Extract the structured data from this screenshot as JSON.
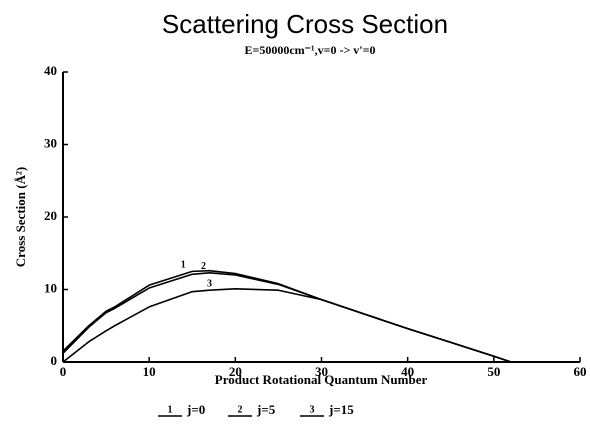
{
  "chart_data": {
    "type": "line",
    "title": "Scattering Cross Section",
    "subtitle": "E=50000cm⁻¹,v=0 -> v'=0",
    "x_label": "Product Rotational Quantum Number",
    "y_label": "Cross Section (Å²)",
    "x": [
      0,
      3,
      5,
      6,
      10,
      15,
      17,
      20,
      25,
      30,
      35,
      40,
      45,
      50,
      52
    ],
    "series": [
      {
        "name": "j=0",
        "label": "1",
        "color": "#000000",
        "values": [
          1.5,
          5,
          7,
          7.6,
          10.6,
          12.5,
          12.6,
          12.2,
          10.8,
          8.6,
          6.6,
          4.6,
          2.7,
          0.8,
          0
        ]
      },
      {
        "name": "j=5",
        "label": "2",
        "color": "#000000",
        "values": [
          1.2,
          4.8,
          6.8,
          7.4,
          10.2,
          12.1,
          12.3,
          12.0,
          10.7,
          8.6,
          6.6,
          4.6,
          2.7,
          0.8,
          0
        ]
      },
      {
        "name": "j=15",
        "label": "3",
        "color": "#000000",
        "values": [
          0,
          2.8,
          4.3,
          5,
          7.6,
          9.7,
          9.9,
          10.1,
          9.9,
          8.6,
          6.6,
          4.6,
          2.7,
          0.8,
          0
        ]
      }
    ],
    "xlim": [
      0,
      60
    ],
    "xticks": [
      0,
      10,
      20,
      30,
      40,
      50,
      60
    ],
    "ylim": [
      0,
      40
    ],
    "yticks": [
      0,
      10,
      20,
      30,
      40
    ],
    "grid": false,
    "legend": "bottom"
  }
}
